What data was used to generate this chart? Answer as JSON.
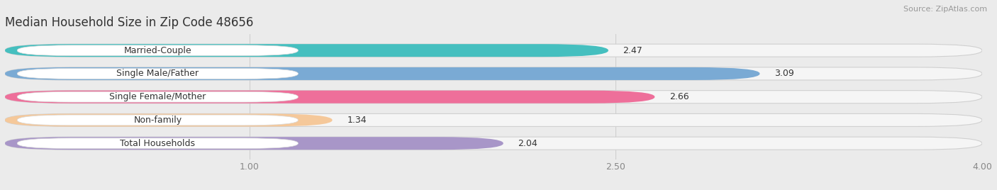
{
  "title": "Median Household Size in Zip Code 48656",
  "source": "Source: ZipAtlas.com",
  "categories": [
    "Married-Couple",
    "Single Male/Father",
    "Single Female/Mother",
    "Non-family",
    "Total Households"
  ],
  "values": [
    2.47,
    3.09,
    2.66,
    1.34,
    2.04
  ],
  "bar_colors": [
    "#45BFBF",
    "#7AAAD4",
    "#EE6F9A",
    "#F5C89A",
    "#A896C8"
  ],
  "xlim": [
    0,
    4.0
  ],
  "xticks": [
    1.0,
    2.5,
    4.0
  ],
  "background_color": "#ebebeb",
  "title_fontsize": 12,
  "label_fontsize": 9,
  "value_fontsize": 9,
  "source_fontsize": 8
}
